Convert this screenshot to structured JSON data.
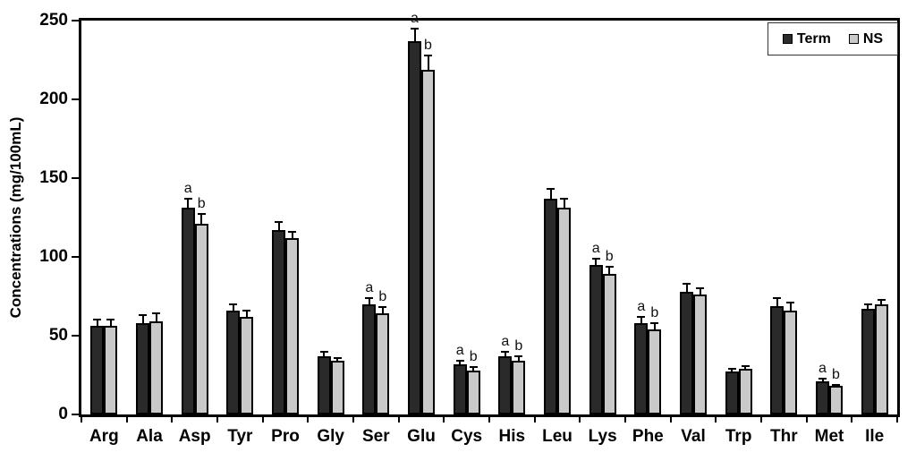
{
  "figure": {
    "background": "#ffffff",
    "axis_color": "#000000"
  },
  "chart_data": {
    "type": "bar",
    "title": "",
    "xlabel": "",
    "ylabel": "Concentrations (mg/100mL)",
    "ylim": [
      0,
      250
    ],
    "yticks": [
      0,
      50,
      100,
      150,
      200,
      250
    ],
    "grid": false,
    "legend_position": "top-right",
    "categories": [
      "Arg",
      "Ala",
      "Asp",
      "Tyr",
      "Pro",
      "Gly",
      "Ser",
      "Glu",
      "Cys",
      "His",
      "Leu",
      "Lys",
      "Phe",
      "Val",
      "Trp",
      "Thr",
      "Met",
      "Ile"
    ],
    "series": [
      {
        "name": "Term",
        "color": "#2a2a2a",
        "values": [
          56,
          58,
          131,
          66,
          117,
          37,
          70,
          237,
          32,
          37,
          137,
          95,
          58,
          78,
          27,
          69,
          21,
          67
        ],
        "errors": [
          4,
          5,
          6,
          4,
          5,
          3,
          4,
          8,
          2,
          3,
          6,
          4,
          4,
          5,
          2,
          5,
          1.5,
          3
        ],
        "sig_letters": [
          "",
          "",
          "a",
          "",
          "",
          "",
          "a",
          "a",
          "a",
          "a",
          "",
          "a",
          "a",
          "",
          "",
          "",
          "a",
          ""
        ]
      },
      {
        "name": "NS",
        "color": "#c9c9c9",
        "values": [
          56,
          59,
          121,
          62,
          112,
          34,
          64,
          219,
          28,
          34,
          131,
          89,
          54,
          76,
          29,
          66,
          18,
          70
        ],
        "errors": [
          4,
          5,
          6,
          4,
          4,
          2,
          4,
          9,
          2,
          3,
          6,
          5,
          4,
          4,
          1.5,
          5,
          1,
          3
        ],
        "sig_letters": [
          "",
          "",
          "b",
          "",
          "",
          "",
          "b",
          "b",
          "b",
          "b",
          "",
          "b",
          "b",
          "",
          "",
          "",
          "b",
          ""
        ]
      }
    ]
  }
}
